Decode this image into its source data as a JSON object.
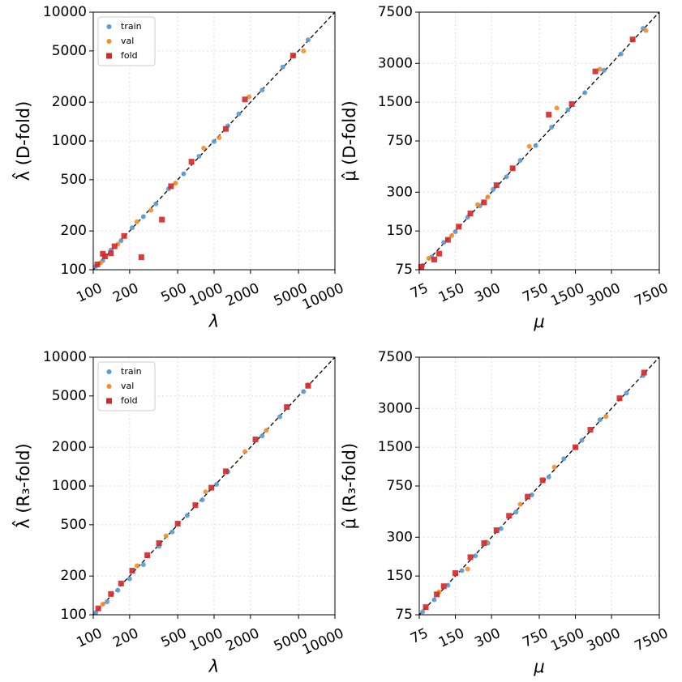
{
  "chart_data": [
    {
      "type": "scatter",
      "xlabel": "λ",
      "ylabel": "λ̂ (D-fold)",
      "xscale": "log",
      "yscale": "log",
      "xlim": [
        100,
        10000
      ],
      "ylim": [
        100,
        10000
      ],
      "xticks": [
        100,
        200,
        500,
        1000,
        2000,
        5000,
        10000
      ],
      "yticks": [
        100,
        200,
        500,
        1000,
        2000,
        5000,
        10000
      ],
      "grid": true,
      "identity_line": true,
      "legend": "upper left",
      "series": [
        {
          "name": "train",
          "color": "#5b9bd0",
          "marker": "o",
          "x": [
            105,
            120,
            140,
            170,
            210,
            260,
            330,
            420,
            560,
            750,
            1000,
            1300,
            1600,
            2500,
            3700,
            6000
          ],
          "values": [
            106,
            118,
            142,
            168,
            212,
            258,
            325,
            425,
            555,
            760,
            990,
            1310,
            1620,
            2480,
            3750,
            6100
          ]
        },
        {
          "name": "val",
          "color": "#f28e2b",
          "marker": "o",
          "x": [
            115,
            160,
            230,
            300,
            480,
            820,
            1100,
            1950,
            5500
          ],
          "values": [
            113,
            158,
            236,
            290,
            470,
            880,
            1060,
            2200,
            5000
          ]
        },
        {
          "name": "fold",
          "color": "#d62728",
          "marker": "s",
          "x": [
            108,
            125,
            150,
            180,
            120,
            140,
            250,
            370,
            440,
            650,
            1250,
            1800,
            4500
          ],
          "values": [
            110,
            127,
            152,
            183,
            133,
            134,
            125,
            245,
            445,
            690,
            1240,
            2100,
            4600
          ]
        }
      ]
    },
    {
      "type": "scatter",
      "xlabel": "μ",
      "ylabel": "μ̂ (D-fold)",
      "xscale": "log",
      "yscale": "log",
      "xlim": [
        75,
        7500
      ],
      "ylim": [
        75,
        7500
      ],
      "xticks": [
        75,
        150,
        300,
        750,
        1500,
        3000,
        7500
      ],
      "yticks": [
        75,
        150,
        300,
        750,
        1500,
        3000,
        7500
      ],
      "grid": true,
      "identity_line": true,
      "series": [
        {
          "color": "#5b9bd0",
          "marker": "o",
          "x": [
            80,
            95,
            120,
            150,
            190,
            240,
            310,
            400,
            520,
            700,
            950,
            1300,
            1800,
            2600,
            3600,
            5500
          ],
          "values": [
            81,
            94,
            122,
            148,
            192,
            235,
            315,
            395,
            530,
            690,
            960,
            1310,
            1780,
            2650,
            3550,
            5600
          ]
        },
        {
          "color": "#f28e2b",
          "marker": "o",
          "x": [
            90,
            140,
            230,
            280,
            620,
            1050,
            2400,
            5800
          ],
          "values": [
            92,
            138,
            240,
            275,
            680,
            1350,
            2700,
            5400
          ]
        },
        {
          "color": "#d62728",
          "marker": "s",
          "x": [
            78,
            100,
            110,
            130,
            160,
            200,
            260,
            330,
            450,
            900,
            1400,
            2200,
            4500
          ],
          "values": [
            79,
            90,
            100,
            128,
            162,
            205,
            250,
            340,
            460,
            1200,
            1450,
            2600,
            4600
          ]
        }
      ]
    },
    {
      "type": "scatter",
      "xlabel": "λ",
      "ylabel": "λ̂ (R₃-fold)",
      "xscale": "log",
      "yscale": "log",
      "xlim": [
        100,
        10000
      ],
      "ylim": [
        100,
        10000
      ],
      "xticks": [
        100,
        200,
        500,
        1000,
        2000,
        5000,
        10000
      ],
      "yticks": [
        100,
        200,
        500,
        1000,
        2000,
        5000,
        10000
      ],
      "grid": true,
      "identity_line": true,
      "legend": "upper left",
      "series": [
        {
          "name": "train",
          "color": "#5b9bd0",
          "marker": "o",
          "x": [
            105,
            130,
            160,
            200,
            260,
            350,
            450,
            600,
            800,
            1050,
            1300,
            2500,
            3500,
            5500
          ],
          "values": [
            104,
            126,
            155,
            190,
            245,
            340,
            440,
            590,
            780,
            1030,
            1290,
            2450,
            3450,
            5400
          ]
        },
        {
          "name": "val",
          "color": "#f28e2b",
          "marker": "o",
          "x": [
            120,
            230,
            400,
            850,
            1800,
            2700,
            6000
          ],
          "values": [
            121,
            240,
            410,
            900,
            1850,
            2700,
            6100
          ]
        },
        {
          "name": "fold",
          "color": "#d62728",
          "marker": "s",
          "x": [
            110,
            140,
            170,
            210,
            280,
            350,
            500,
            700,
            950,
            1250,
            2200,
            4000,
            6000
          ],
          "values": [
            112,
            145,
            175,
            220,
            290,
            360,
            510,
            710,
            970,
            1300,
            2300,
            4100,
            6000
          ]
        }
      ]
    },
    {
      "type": "scatter",
      "xlabel": "μ",
      "ylabel": "μ̂ (R₃-fold)",
      "xscale": "log",
      "yscale": "log",
      "xlim": [
        75,
        7500
      ],
      "ylim": [
        75,
        7500
      ],
      "xticks": [
        75,
        150,
        300,
        750,
        1500,
        3000,
        7500
      ],
      "yticks": [
        75,
        150,
        300,
        750,
        1500,
        3000,
        7500
      ],
      "grid": true,
      "identity_line": true,
      "series": [
        {
          "color": "#5b9bd0",
          "marker": "o",
          "x": [
            80,
            100,
            130,
            170,
            220,
            280,
            360,
            480,
            650,
            900,
            1200,
            1700,
            2400,
            4000,
            5500
          ],
          "values": [
            79,
            98,
            127,
            165,
            215,
            270,
            350,
            470,
            640,
            880,
            1220,
            1700,
            2450,
            3950,
            5400
          ]
        },
        {
          "color": "#f28e2b",
          "marker": "o",
          "x": [
            110,
            190,
            270,
            520,
            1000,
            2700
          ],
          "values": [
            113,
            170,
            275,
            540,
            1050,
            2600
          ]
        },
        {
          "color": "#d62728",
          "marker": "s",
          "x": [
            85,
            105,
            120,
            150,
            200,
            260,
            330,
            420,
            600,
            800,
            1500,
            2000,
            3500,
            5600
          ],
          "values": [
            86,
            108,
            125,
            158,
            210,
            270,
            340,
            440,
            620,
            830,
            1500,
            2050,
            3600,
            5700
          ]
        }
      ]
    }
  ]
}
